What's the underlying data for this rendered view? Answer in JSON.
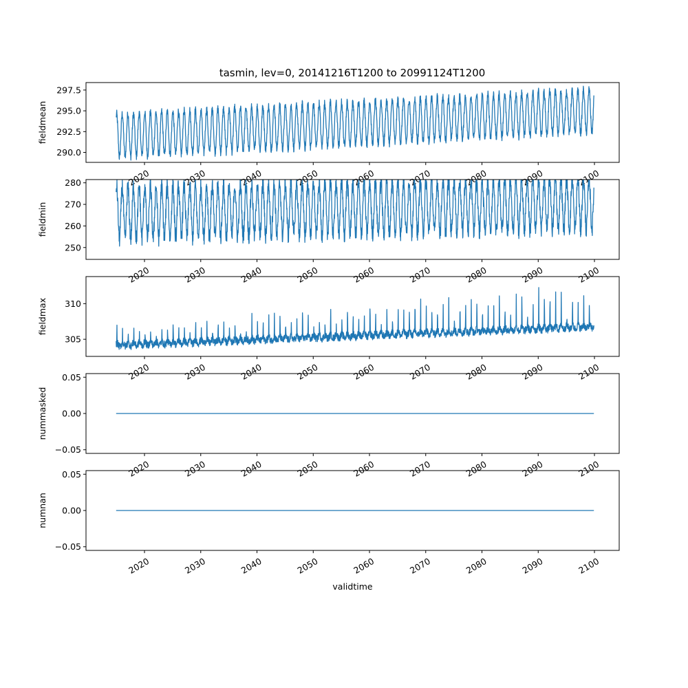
{
  "title": "tasmin, lev=0, 20141216T1200 to 20991124T1200",
  "colors": {
    "series": "#1f77b4"
  },
  "chart_data": [
    {
      "type": "line",
      "ylabel": "fieldmean",
      "xlabel": "",
      "xlim": [
        2009.6,
        2104.4
      ],
      "ylim": [
        288.8,
        298.4
      ],
      "xticks": [
        2020,
        2030,
        2040,
        2050,
        2060,
        2070,
        2080,
        2090,
        2100
      ],
      "xtick_labels": [
        "2020",
        "2030",
        "2040",
        "2050",
        "2060",
        "2070",
        "2080",
        "2090",
        "2100"
      ],
      "yticks": [
        290.0,
        292.5,
        295.0,
        297.5
      ],
      "ytick_labels": [
        "290.0",
        "292.5",
        "295.0",
        "297.5"
      ],
      "xrange": [
        2014.96,
        2099.9
      ],
      "series": [
        {
          "trend_start": 292.0,
          "trend_end": 295.0,
          "amplitude": 2.6,
          "noise": 0.5,
          "period_years": 1.0
        }
      ]
    },
    {
      "type": "line",
      "ylabel": "fieldmin",
      "xlabel": "",
      "xlim": [
        2009.6,
        2104.4
      ],
      "ylim": [
        244.5,
        281.5
      ],
      "xticks": [
        2020,
        2030,
        2040,
        2050,
        2060,
        2070,
        2080,
        2090,
        2100
      ],
      "xtick_labels": [
        "2020",
        "2030",
        "2040",
        "2050",
        "2060",
        "2070",
        "2080",
        "2090",
        "2100"
      ],
      "yticks": [
        250,
        260,
        270,
        280
      ],
      "ytick_labels": [
        "250",
        "260",
        "270",
        "280"
      ],
      "xrange": [
        2014.96,
        2099.9
      ],
      "series": [
        {
          "trend_start": 266.0,
          "trend_end": 270.5,
          "amplitude": 12.0,
          "noise": 4.0,
          "period_years": 1.0
        }
      ]
    },
    {
      "type": "line",
      "ylabel": "fieldmax",
      "xlabel": "",
      "xlim": [
        2009.6,
        2104.4
      ],
      "ylim": [
        302.6,
        313.8
      ],
      "xticks": [
        2020,
        2030,
        2040,
        2050,
        2060,
        2070,
        2080,
        2090,
        2100
      ],
      "xtick_labels": [
        "2020",
        "2030",
        "2040",
        "2050",
        "2060",
        "2070",
        "2080",
        "2090",
        "2100"
      ],
      "yticks": [
        305,
        310
      ],
      "ytick_labels": [
        "305",
        "310"
      ],
      "xrange": [
        2014.96,
        2099.9
      ],
      "series": [
        {
          "trend_start": 304.2,
          "trend_end": 306.8,
          "amplitude": 0.6,
          "noise": 0.5,
          "period_years": 1.0,
          "spike_height": 3.2
        }
      ]
    },
    {
      "type": "line",
      "ylabel": "nummasked",
      "xlabel": "",
      "xlim": [
        2009.6,
        2104.4
      ],
      "ylim": [
        -0.055,
        0.055
      ],
      "xticks": [
        2020,
        2030,
        2040,
        2050,
        2060,
        2070,
        2080,
        2090,
        2100
      ],
      "xtick_labels": [
        "2020",
        "2030",
        "2040",
        "2050",
        "2060",
        "2070",
        "2080",
        "2090",
        "2100"
      ],
      "yticks": [
        -0.05,
        0.0,
        0.05
      ],
      "ytick_labels": [
        "−0.05",
        "0.00",
        "0.05"
      ],
      "xrange": [
        2014.96,
        2099.9
      ],
      "series": [
        {
          "constant": 0.0
        }
      ]
    },
    {
      "type": "line",
      "ylabel": "numnan",
      "xlabel": "validtime",
      "xlim": [
        2009.6,
        2104.4
      ],
      "ylim": [
        -0.055,
        0.055
      ],
      "xticks": [
        2020,
        2030,
        2040,
        2050,
        2060,
        2070,
        2080,
        2090,
        2100
      ],
      "xtick_labels": [
        "2020",
        "2030",
        "2040",
        "2050",
        "2060",
        "2070",
        "2080",
        "2090",
        "2100"
      ],
      "yticks": [
        -0.05,
        0.0,
        0.05
      ],
      "ytick_labels": [
        "−0.05",
        "0.00",
        "0.05"
      ],
      "xrange": [
        2014.96,
        2099.9
      ],
      "series": [
        {
          "constant": 0.0
        }
      ]
    }
  ]
}
